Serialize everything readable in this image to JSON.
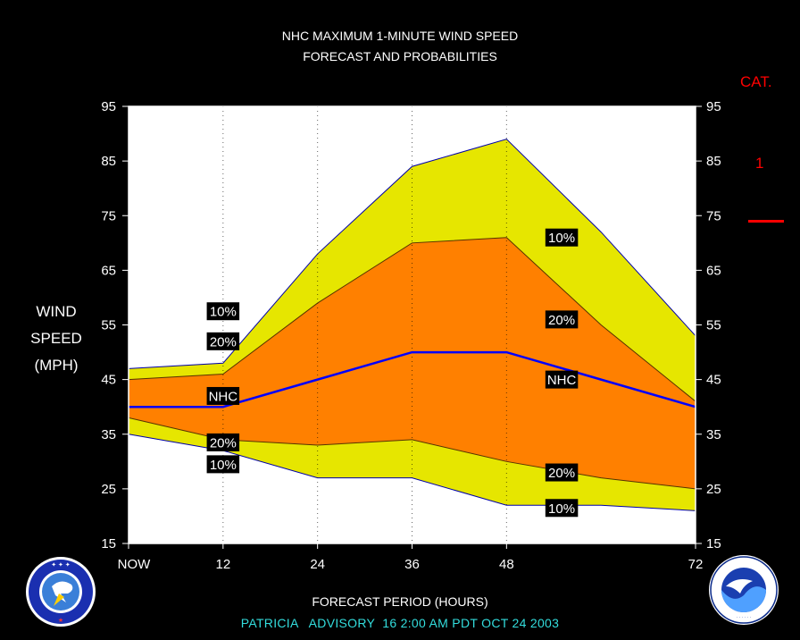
{
  "header": {
    "title_line1": "NHC MAXIMUM 1-MINUTE WIND SPEED",
    "title_line2": "FORECAST AND PROBABILITIES"
  },
  "category": {
    "heading": "CAT.",
    "value": "1",
    "color": "#ff0000"
  },
  "y_axis_label": [
    "WIND",
    "SPEED",
    "(MPH)"
  ],
  "x_axis_label": "FORECAST PERIOD (HOURS)",
  "advisory_line": "PATRICIA   ADVISORY  16 2:00 AM PDT OCT 24 2003",
  "logos": {
    "left": "national-weather-service-logo",
    "right": "noaa-logo"
  },
  "chart_data": {
    "type": "area",
    "x": [
      0,
      12,
      24,
      36,
      48,
      60,
      72
    ],
    "x_tick_values": [
      0,
      12,
      24,
      36,
      48,
      72
    ],
    "x_tick_labels": [
      "NOW",
      "12",
      "24",
      "36",
      "48",
      "72"
    ],
    "xlim": [
      0,
      72
    ],
    "ylim": [
      15,
      95
    ],
    "y_ticks": [
      15,
      25,
      35,
      45,
      55,
      65,
      75,
      85,
      95
    ],
    "grid": "vertical dotted at 12, 24, 36, 48",
    "colors": {
      "band_10": "#e6e600",
      "band_20": "#ff8000",
      "nhc": "#0000ff",
      "background": "#ffffff"
    },
    "series": [
      {
        "name": "10%",
        "role": "upper",
        "values": [
          47,
          48,
          68,
          84,
          89,
          72,
          53
        ]
      },
      {
        "name": "20%",
        "role": "upper",
        "values": [
          45,
          46,
          59,
          70,
          71,
          55,
          41
        ]
      },
      {
        "name": "NHC",
        "role": "forecast",
        "values": [
          40,
          40,
          45,
          50,
          50,
          45,
          40
        ]
      },
      {
        "name": "20%",
        "role": "lower",
        "values": [
          38,
          34,
          33,
          34,
          30,
          27,
          25
        ]
      },
      {
        "name": "10%",
        "role": "lower",
        "values": [
          35,
          32,
          27,
          27,
          22,
          22,
          21
        ]
      }
    ],
    "labels": [
      {
        "text": "10%",
        "x": 12,
        "y": 57.5
      },
      {
        "text": "20%",
        "x": 12,
        "y": 52
      },
      {
        "text": "NHC",
        "x": 12,
        "y": 42
      },
      {
        "text": "20%",
        "x": 12,
        "y": 33.5
      },
      {
        "text": "10%",
        "x": 12,
        "y": 29.5
      },
      {
        "text": "10%",
        "x": 55,
        "y": 71
      },
      {
        "text": "20%",
        "x": 55,
        "y": 56
      },
      {
        "text": "NHC",
        "x": 55,
        "y": 45
      },
      {
        "text": "20%",
        "x": 55,
        "y": 28
      },
      {
        "text": "10%",
        "x": 55,
        "y": 21.5
      }
    ]
  }
}
